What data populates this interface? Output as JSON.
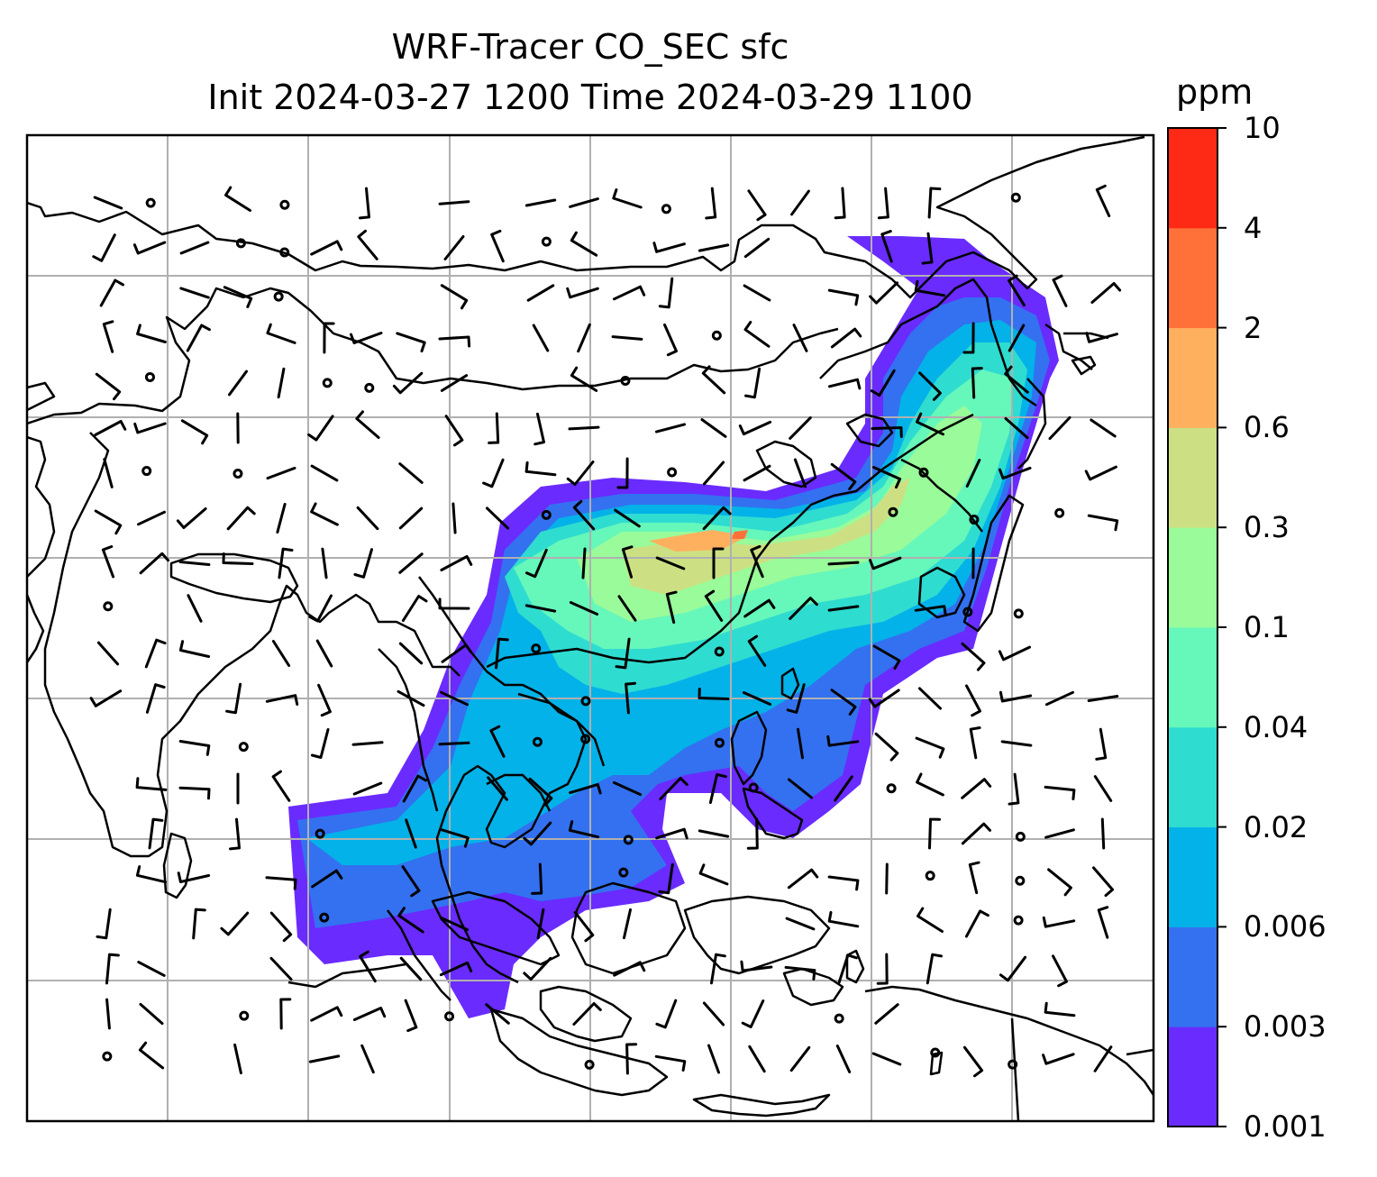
{
  "title": {
    "line1": "WRF-Tracer CO_SEC sfc",
    "line2": "Init 2024-03-27 1200 Time 2024-03-29 1100"
  },
  "colorbar": {
    "unit": "ppm",
    "ticks": [
      "0.001",
      "0.003",
      "0.006",
      "0.02",
      "0.04",
      "0.1",
      "0.3",
      "0.6",
      "2",
      "4",
      "10"
    ],
    "colors": [
      "#6a2bff",
      "#3371f0",
      "#03b2e8",
      "#2fdcd0",
      "#66f7bb",
      "#99fb99",
      "#cce083",
      "#ffb05f",
      "#ff7139",
      "#ff2a15"
    ]
  },
  "map": {
    "gridlines": true,
    "layers": [
      "CO_SEC tracer concentration (filled)",
      "surface wind barbs",
      "coastlines and borders"
    ]
  }
}
